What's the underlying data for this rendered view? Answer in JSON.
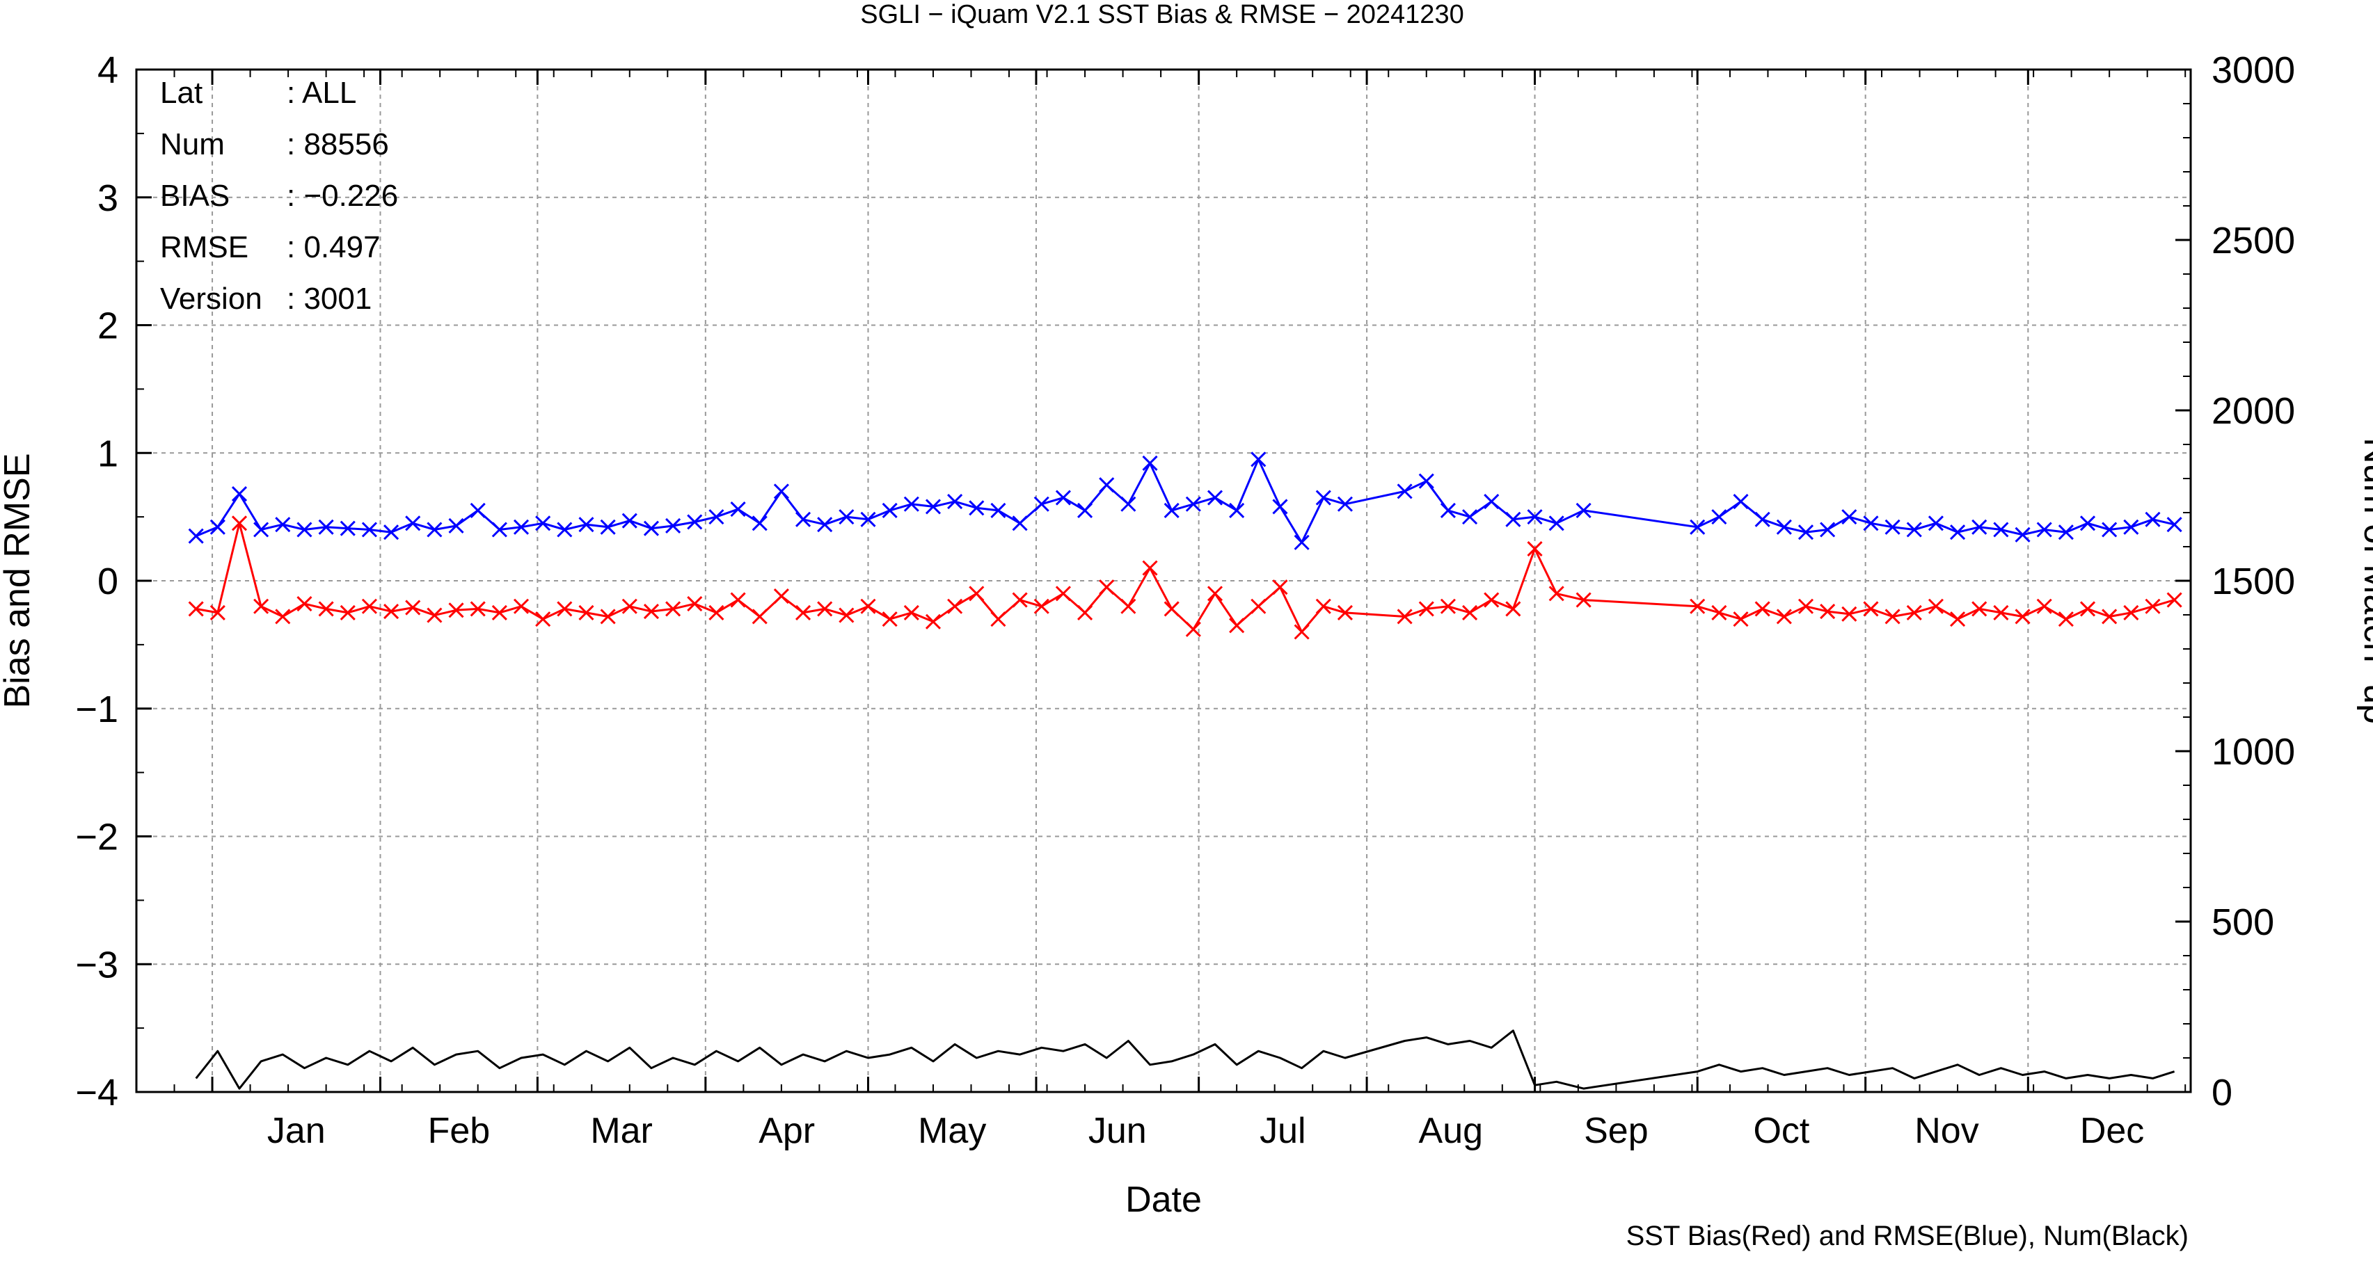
{
  "chart_data": {
    "type": "line",
    "title": "SGLI − iQuam V2.1 SST Bias & RMSE  − 20241230",
    "xlabel": "Date",
    "ylabel": "Bias and RMSE",
    "y2label": "Num of Match−up",
    "footer": "SST Bias(Red) and RMSE(Blue), Num(Black)",
    "grid": true,
    "x_tick_labels": [
      "Jan",
      "Feb",
      "Mar",
      "Apr",
      "May",
      "Jun",
      "Jul",
      "Aug",
      "Sep",
      "Oct",
      "Nov",
      "Dec"
    ],
    "ylim": [
      -4,
      4
    ],
    "y_ticks": [
      "4",
      "3",
      "2",
      "1",
      "0",
      "−1",
      "−2",
      "−3",
      "−4"
    ],
    "y2lim": [
      0,
      3000
    ],
    "y2_ticks": [
      "3000",
      "2500",
      "2000",
      "1500",
      "1000",
      "500",
      "0"
    ],
    "stats": [
      {
        "key": "Lat",
        "value": ": ALL"
      },
      {
        "key": "Num",
        "value": ": 88556"
      },
      {
        "key": "BIAS",
        "value": ": −0.226"
      },
      {
        "key": "RMSE",
        "value": ": 0.497"
      },
      {
        "key": "Version",
        "value": ": 3001"
      }
    ],
    "colors": {
      "bias": "#ff0000",
      "rmse": "#0000ff",
      "num": "#000000",
      "grid": "#999999"
    },
    "series": [
      {
        "key": "rmse",
        "axis": "left",
        "marker": "x",
        "x": [
          "2023-12-29",
          "2024-01-02",
          "2024-01-06",
          "2024-01-10",
          "2024-01-14",
          "2024-01-18",
          "2024-01-22",
          "2024-01-26",
          "2024-01-30",
          "2024-02-03",
          "2024-02-07",
          "2024-02-11",
          "2024-02-15",
          "2024-02-19",
          "2024-02-23",
          "2024-02-27",
          "2024-03-02",
          "2024-03-06",
          "2024-03-10",
          "2024-03-14",
          "2024-03-18",
          "2024-03-22",
          "2024-03-26",
          "2024-03-30",
          "2024-04-03",
          "2024-04-07",
          "2024-04-11",
          "2024-04-15",
          "2024-04-19",
          "2024-04-23",
          "2024-04-27",
          "2024-05-01",
          "2024-05-05",
          "2024-05-09",
          "2024-05-13",
          "2024-05-17",
          "2024-05-21",
          "2024-05-25",
          "2024-05-29",
          "2024-06-02",
          "2024-06-06",
          "2024-06-10",
          "2024-06-14",
          "2024-06-18",
          "2024-06-22",
          "2024-06-26",
          "2024-06-30",
          "2024-07-04",
          "2024-07-08",
          "2024-07-12",
          "2024-07-16",
          "2024-07-20",
          "2024-07-24",
          "2024-07-28",
          "2024-08-08",
          "2024-08-12",
          "2024-08-16",
          "2024-08-20",
          "2024-08-24",
          "2024-08-28",
          "2024-09-01",
          "2024-09-05",
          "2024-09-10",
          "2024-10-01",
          "2024-10-05",
          "2024-10-09",
          "2024-10-13",
          "2024-10-17",
          "2024-10-21",
          "2024-10-25",
          "2024-10-29",
          "2024-11-02",
          "2024-11-06",
          "2024-11-10",
          "2024-11-14",
          "2024-11-18",
          "2024-11-22",
          "2024-11-26",
          "2024-11-30",
          "2024-12-04",
          "2024-12-08",
          "2024-12-12",
          "2024-12-16",
          "2024-12-20",
          "2024-12-24",
          "2024-12-28"
        ],
        "y": [
          0.35,
          0.42,
          0.68,
          0.4,
          0.44,
          0.4,
          0.42,
          0.41,
          0.4,
          0.38,
          0.45,
          0.4,
          0.43,
          0.55,
          0.4,
          0.42,
          0.45,
          0.4,
          0.44,
          0.42,
          0.47,
          0.41,
          0.43,
          0.46,
          0.5,
          0.56,
          0.45,
          0.7,
          0.48,
          0.44,
          0.5,
          0.48,
          0.55,
          0.6,
          0.58,
          0.62,
          0.57,
          0.55,
          0.45,
          0.6,
          0.65,
          0.55,
          0.75,
          0.6,
          0.92,
          0.55,
          0.6,
          0.65,
          0.55,
          0.95,
          0.58,
          0.3,
          0.65,
          0.6,
          0.7,
          0.78,
          0.55,
          0.5,
          0.62,
          0.48,
          0.5,
          0.45,
          0.55,
          0.42,
          0.5,
          0.62,
          0.48,
          0.42,
          0.38,
          0.4,
          0.5,
          0.45,
          0.42,
          0.4,
          0.45,
          0.38,
          0.42,
          0.4,
          0.36,
          0.4,
          0.38,
          0.45,
          0.4,
          0.42,
          0.48,
          0.44
        ]
      },
      {
        "key": "bias",
        "axis": "left",
        "marker": "x",
        "x": [
          "2023-12-29",
          "2024-01-02",
          "2024-01-06",
          "2024-01-10",
          "2024-01-14",
          "2024-01-18",
          "2024-01-22",
          "2024-01-26",
          "2024-01-30",
          "2024-02-03",
          "2024-02-07",
          "2024-02-11",
          "2024-02-15",
          "2024-02-19",
          "2024-02-23",
          "2024-02-27",
          "2024-03-02",
          "2024-03-06",
          "2024-03-10",
          "2024-03-14",
          "2024-03-18",
          "2024-03-22",
          "2024-03-26",
          "2024-03-30",
          "2024-04-03",
          "2024-04-07",
          "2024-04-11",
          "2024-04-15",
          "2024-04-19",
          "2024-04-23",
          "2024-04-27",
          "2024-05-01",
          "2024-05-05",
          "2024-05-09",
          "2024-05-13",
          "2024-05-17",
          "2024-05-21",
          "2024-05-25",
          "2024-05-29",
          "2024-06-02",
          "2024-06-06",
          "2024-06-10",
          "2024-06-14",
          "2024-06-18",
          "2024-06-22",
          "2024-06-26",
          "2024-06-30",
          "2024-07-04",
          "2024-07-08",
          "2024-07-12",
          "2024-07-16",
          "2024-07-20",
          "2024-07-24",
          "2024-07-28",
          "2024-08-08",
          "2024-08-12",
          "2024-08-16",
          "2024-08-20",
          "2024-08-24",
          "2024-08-28",
          "2024-09-01",
          "2024-09-05",
          "2024-09-10",
          "2024-10-01",
          "2024-10-05",
          "2024-10-09",
          "2024-10-13",
          "2024-10-17",
          "2024-10-21",
          "2024-10-25",
          "2024-10-29",
          "2024-11-02",
          "2024-11-06",
          "2024-11-10",
          "2024-11-14",
          "2024-11-18",
          "2024-11-22",
          "2024-11-26",
          "2024-11-30",
          "2024-12-04",
          "2024-12-08",
          "2024-12-12",
          "2024-12-16",
          "2024-12-20",
          "2024-12-24",
          "2024-12-28"
        ],
        "y": [
          -0.22,
          -0.25,
          0.45,
          -0.2,
          -0.28,
          -0.18,
          -0.22,
          -0.25,
          -0.2,
          -0.24,
          -0.21,
          -0.27,
          -0.23,
          -0.22,
          -0.25,
          -0.2,
          -0.3,
          -0.22,
          -0.25,
          -0.28,
          -0.2,
          -0.24,
          -0.22,
          -0.18,
          -0.25,
          -0.15,
          -0.28,
          -0.12,
          -0.25,
          -0.22,
          -0.27,
          -0.2,
          -0.3,
          -0.25,
          -0.32,
          -0.2,
          -0.1,
          -0.3,
          -0.15,
          -0.2,
          -0.1,
          -0.25,
          -0.05,
          -0.2,
          0.1,
          -0.22,
          -0.38,
          -0.1,
          -0.35,
          -0.2,
          -0.05,
          -0.4,
          -0.2,
          -0.25,
          -0.28,
          -0.22,
          -0.2,
          -0.25,
          -0.15,
          -0.22,
          0.25,
          -0.1,
          -0.15,
          -0.2,
          -0.25,
          -0.3,
          -0.22,
          -0.28,
          -0.2,
          -0.24,
          -0.26,
          -0.22,
          -0.28,
          -0.25,
          -0.2,
          -0.3,
          -0.22,
          -0.25,
          -0.28,
          -0.2,
          -0.3,
          -0.22,
          -0.28,
          -0.25,
          -0.2,
          -0.15
        ]
      },
      {
        "key": "num",
        "axis": "right",
        "marker": "none",
        "x": [
          "2023-12-29",
          "2024-01-02",
          "2024-01-06",
          "2024-01-10",
          "2024-01-14",
          "2024-01-18",
          "2024-01-22",
          "2024-01-26",
          "2024-01-30",
          "2024-02-03",
          "2024-02-07",
          "2024-02-11",
          "2024-02-15",
          "2024-02-19",
          "2024-02-23",
          "2024-02-27",
          "2024-03-02",
          "2024-03-06",
          "2024-03-10",
          "2024-03-14",
          "2024-03-18",
          "2024-03-22",
          "2024-03-26",
          "2024-03-30",
          "2024-04-03",
          "2024-04-07",
          "2024-04-11",
          "2024-04-15",
          "2024-04-19",
          "2024-04-23",
          "2024-04-27",
          "2024-05-01",
          "2024-05-05",
          "2024-05-09",
          "2024-05-13",
          "2024-05-17",
          "2024-05-21",
          "2024-05-25",
          "2024-05-29",
          "2024-06-02",
          "2024-06-06",
          "2024-06-10",
          "2024-06-14",
          "2024-06-18",
          "2024-06-22",
          "2024-06-26",
          "2024-06-30",
          "2024-07-04",
          "2024-07-08",
          "2024-07-12",
          "2024-07-16",
          "2024-07-20",
          "2024-07-24",
          "2024-07-28",
          "2024-08-08",
          "2024-08-12",
          "2024-08-16",
          "2024-08-20",
          "2024-08-24",
          "2024-08-28",
          "2024-09-01",
          "2024-09-05",
          "2024-09-10",
          "2024-10-01",
          "2024-10-05",
          "2024-10-09",
          "2024-10-13",
          "2024-10-17",
          "2024-10-21",
          "2024-10-25",
          "2024-10-29",
          "2024-11-02",
          "2024-11-06",
          "2024-11-10",
          "2024-11-14",
          "2024-11-18",
          "2024-11-22",
          "2024-11-26",
          "2024-11-30",
          "2024-12-04",
          "2024-12-08",
          "2024-12-12",
          "2024-12-16",
          "2024-12-20",
          "2024-12-24",
          "2024-12-28"
        ],
        "y": [
          40,
          120,
          10,
          90,
          110,
          70,
          100,
          80,
          120,
          90,
          130,
          80,
          110,
          120,
          70,
          100,
          110,
          80,
          120,
          90,
          130,
          70,
          100,
          80,
          120,
          90,
          130,
          80,
          110,
          90,
          120,
          100,
          110,
          130,
          90,
          140,
          100,
          120,
          110,
          130,
          120,
          140,
          100,
          150,
          80,
          90,
          110,
          140,
          80,
          120,
          100,
          70,
          120,
          100,
          150,
          160,
          140,
          150,
          130,
          180,
          20,
          30,
          10,
          60,
          80,
          60,
          70,
          50,
          60,
          70,
          50,
          60,
          70,
          40,
          60,
          80,
          50,
          70,
          50,
          60,
          40,
          50,
          40,
          50,
          40,
          60
        ]
      }
    ]
  }
}
